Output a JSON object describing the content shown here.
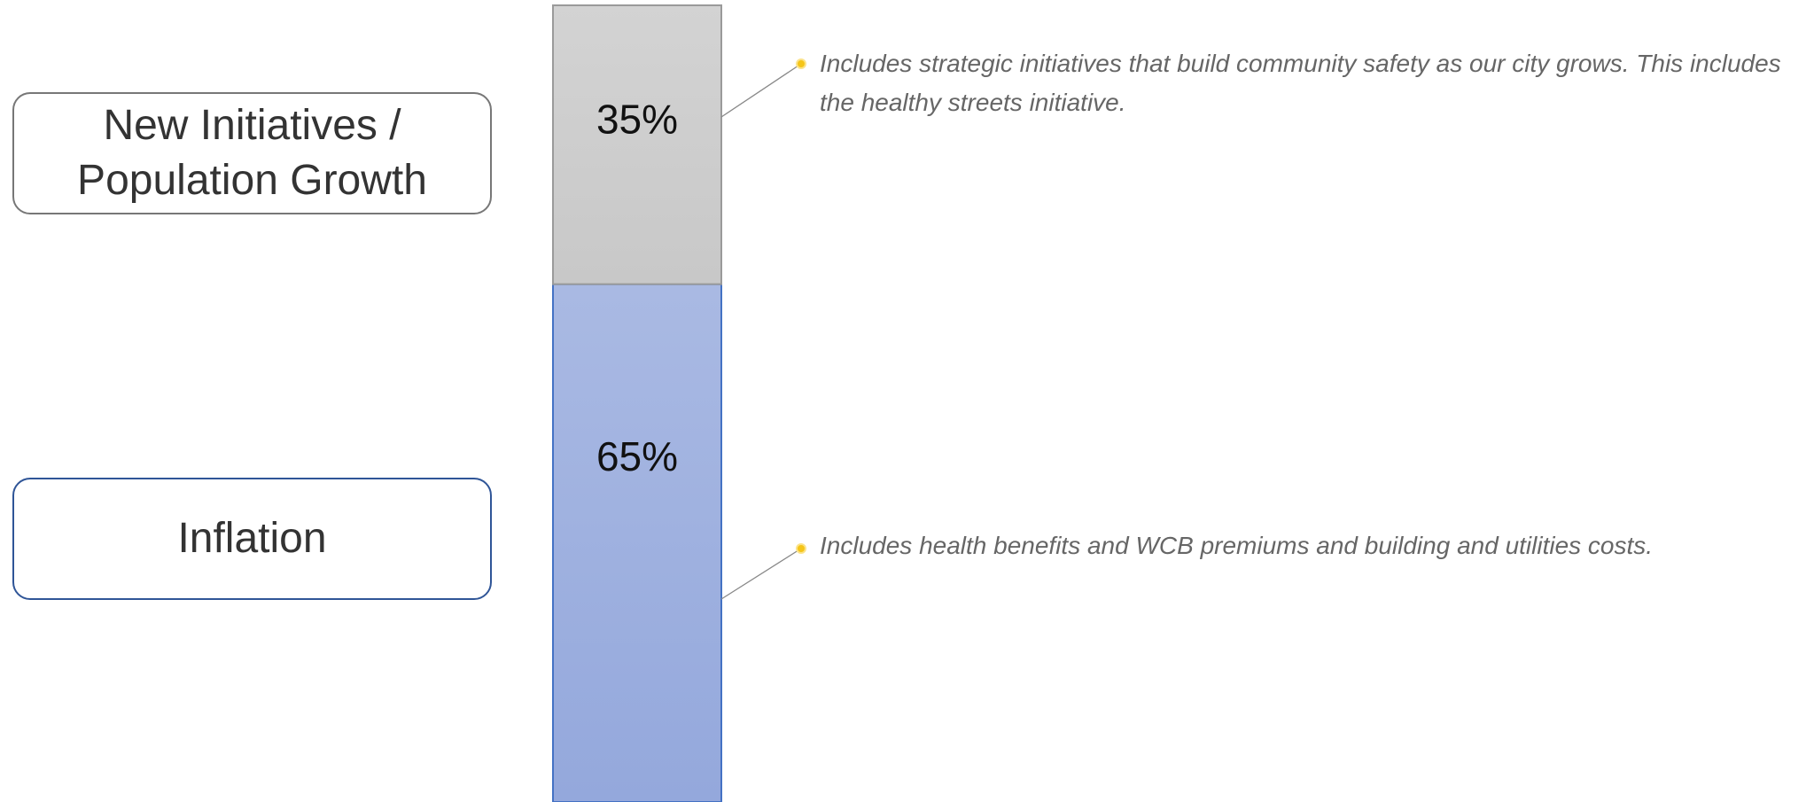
{
  "chart_data": {
    "type": "stacked_bar",
    "series": [
      {
        "name": "Inflation",
        "color": "#94a8dc",
        "border": "#4472c4",
        "values": [
          65
        ],
        "value_labels": [
          "65%"
        ]
      },
      {
        "name": "New Initiatives / Population Growth",
        "color": "#c8c8c8",
        "border": "#9a9a9a",
        "values": [
          35
        ],
        "value_labels": [
          "35%"
        ]
      }
    ],
    "annotations": [
      "Includes health benefits and WCB premiums and building and utilities costs.",
      "Includes strategic initiatives that build community safety as our city grows. This includes the healthy streets initiative."
    ]
  }
}
